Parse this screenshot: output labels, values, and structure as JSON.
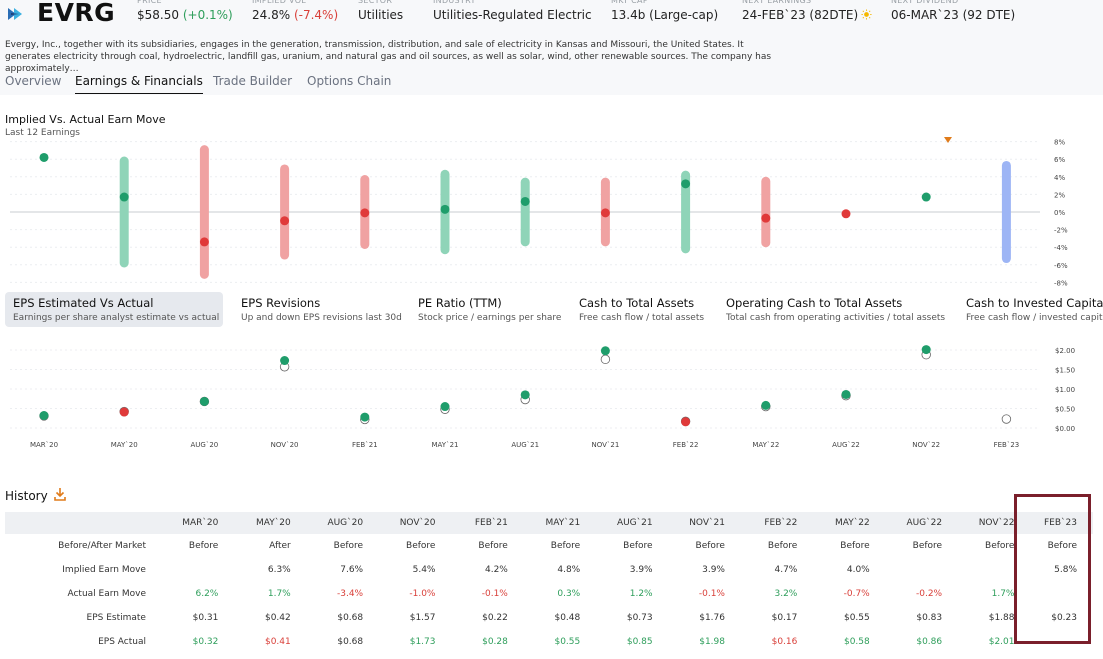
{
  "header": {
    "ticker": "EVRG",
    "stats": [
      {
        "label": "PRICE",
        "value": "$58.50",
        "change": "(+0.1%)",
        "change_dir": "pos"
      },
      {
        "label": "IMPLIED VOL",
        "value": "24.8%",
        "change": "(-7.4%)",
        "change_dir": "neg"
      },
      {
        "label": "SECTOR",
        "value": "Utilities"
      },
      {
        "label": "INDUSTRY",
        "value": "Utilities-Regulated Electric"
      },
      {
        "label": "MKT CAP",
        "value": "13.4b (Large-cap)"
      },
      {
        "label": "NEXT EARNINGS",
        "value": "24-FEB`23 (82DTE)",
        "icon": "sun-icon"
      },
      {
        "label": "NEXT DIVIDEND",
        "value": "06-MAR`23 (92 DTE)"
      }
    ],
    "description": "Evergy, Inc., together with its subsidiaries, engages in the generation, transmission, distribution, and sale of electricity in Kansas and Missouri, the United States. It generates electricity through coal, hydroelectric, landfill gas, uranium, and natural gas and oil sources, as well as solar, wind, other renewable sources. The company has approximately…"
  },
  "tabs": [
    "Overview",
    "Earnings & Financials",
    "Trade Builder",
    "Options Chain"
  ],
  "active_tab": 1,
  "implied_chart": {
    "title": "Implied Vs. Actual Earn Move",
    "subtitle": "Last 12 Earnings",
    "y_ticks": [
      "8%",
      "6%",
      "4%",
      "2%",
      "0%",
      "-2%",
      "-4%",
      "-6%",
      "-8%"
    ]
  },
  "metric_cards": [
    {
      "title": "EPS Estimated Vs Actual",
      "subtitle": "Earnings per share analyst estimate vs actual"
    },
    {
      "title": "EPS Revisions",
      "subtitle": "Up and down EPS revisions last 30d"
    },
    {
      "title": "PE Ratio (TTM)",
      "subtitle": "Stock price / earnings per share"
    },
    {
      "title": "Cash to Total Assets",
      "subtitle": "Free cash flow / total assets"
    },
    {
      "title": "Operating Cash to Total Assets",
      "subtitle": "Total cash from operating activities / total assets"
    },
    {
      "title": "Cash to Invested Capital",
      "subtitle": "Free cash flow / invested capital"
    }
  ],
  "eps_chart": {
    "y_ticks": [
      "$2.00",
      "$1.50",
      "$1.00",
      "$0.50",
      "$0.00"
    ]
  },
  "chart_data": [
    {
      "type": "scatter",
      "title": "Implied Vs. Actual Earn Move",
      "subtitle": "Last 12 Earnings",
      "categories": [
        "MAR`20",
        "MAY`20",
        "AUG`20",
        "NOV`20",
        "FEB`21",
        "MAY`21",
        "AUG`21",
        "NOV`21",
        "FEB`22",
        "MAY`22",
        "AUG`22",
        "NOV`22",
        "FEB`23"
      ],
      "series": [
        {
          "name": "Implied Earn Move",
          "values": [
            null,
            6.3,
            7.6,
            5.4,
            4.2,
            4.8,
            3.9,
            3.9,
            4.7,
            4.0,
            null,
            null,
            5.8
          ]
        },
        {
          "name": "Actual Earn Move",
          "values": [
            6.2,
            1.7,
            -3.4,
            -1.0,
            -0.1,
            0.3,
            1.2,
            -0.1,
            3.2,
            -0.7,
            -0.2,
            1.7,
            null
          ]
        }
      ],
      "ylim": [
        -8,
        8
      ],
      "colors": {
        "up": "#1f9d6b",
        "down": "#e03a3a",
        "up_band": "#8fd4b8",
        "down_band": "#f0a2a2",
        "upcoming_band": "#9db5f5",
        "next_marker": "#e07b1a"
      }
    },
    {
      "type": "scatter",
      "title": "EPS Estimated Vs Actual",
      "categories": [
        "MAR`20",
        "MAY`20",
        "AUG`20",
        "NOV`20",
        "FEB`21",
        "MAY`21",
        "AUG`21",
        "NOV`21",
        "FEB`22",
        "MAY`22",
        "AUG`22",
        "NOV`22",
        "FEB`23"
      ],
      "series": [
        {
          "name": "EPS Estimate",
          "values": [
            0.31,
            0.42,
            0.68,
            1.57,
            0.22,
            0.48,
            0.73,
            1.76,
            0.17,
            0.55,
            0.83,
            1.88,
            0.23
          ]
        },
        {
          "name": "EPS Actual",
          "values": [
            0.32,
            0.41,
            0.68,
            1.73,
            0.28,
            0.55,
            0.85,
            1.98,
            0.16,
            0.58,
            0.86,
            2.01,
            null
          ]
        }
      ],
      "ylim": [
        0,
        2.1
      ]
    }
  ],
  "history": {
    "title": "History",
    "download_icon": "download-icon",
    "columns": [
      "MAR`20",
      "MAY`20",
      "AUG`20",
      "NOV`20",
      "FEB`21",
      "MAY`21",
      "AUG`21",
      "NOV`21",
      "FEB`22",
      "MAY`22",
      "AUG`22",
      "NOV`22",
      "FEB`23"
    ],
    "rows": [
      {
        "label": "Before/After Market",
        "cells": [
          "Before",
          "After",
          "Before",
          "Before",
          "Before",
          "Before",
          "Before",
          "Before",
          "Before",
          "Before",
          "Before",
          "Before",
          "Before"
        ],
        "tones": [
          "",
          "",
          "",
          "",
          "",
          "",
          "",
          "",
          "",
          "",
          "",
          "",
          ""
        ]
      },
      {
        "label": "Implied Earn Move",
        "cells": [
          "",
          "6.3%",
          "7.6%",
          "5.4%",
          "4.2%",
          "4.8%",
          "3.9%",
          "3.9%",
          "4.7%",
          "4.0%",
          "",
          "",
          "5.8%"
        ],
        "tones": [
          "",
          "",
          "",
          "",
          "",
          "",
          "",
          "",
          "",
          "",
          "",
          "",
          ""
        ]
      },
      {
        "label": "Actual Earn Move",
        "cells": [
          "6.2%",
          "1.7%",
          "-3.4%",
          "-1.0%",
          "-0.1%",
          "0.3%",
          "1.2%",
          "-0.1%",
          "3.2%",
          "-0.7%",
          "-0.2%",
          "1.7%",
          ""
        ],
        "tones": [
          "pos",
          "pos",
          "neg",
          "neg",
          "neg",
          "pos",
          "pos",
          "neg",
          "pos",
          "neg",
          "neg",
          "pos",
          ""
        ]
      },
      {
        "label": "EPS Estimate",
        "cells": [
          "$0.31",
          "$0.42",
          "$0.68",
          "$1.57",
          "$0.22",
          "$0.48",
          "$0.73",
          "$1.76",
          "$0.17",
          "$0.55",
          "$0.83",
          "$1.88",
          "$0.23"
        ],
        "tones": [
          "",
          "",
          "",
          "",
          "",
          "",
          "",
          "",
          "",
          "",
          "",
          "",
          ""
        ]
      },
      {
        "label": "EPS Actual",
        "cells": [
          "$0.32",
          "$0.41",
          "$0.68",
          "$1.73",
          "$0.28",
          "$0.55",
          "$0.85",
          "$1.98",
          "$0.16",
          "$0.58",
          "$0.86",
          "$2.01",
          ""
        ],
        "tones": [
          "pos",
          "neg",
          "",
          "pos",
          "pos",
          "pos",
          "pos",
          "pos",
          "neg",
          "pos",
          "pos",
          "pos",
          ""
        ]
      }
    ]
  }
}
